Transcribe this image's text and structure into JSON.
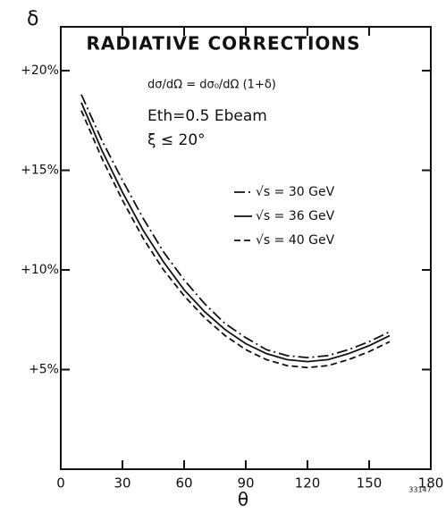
{
  "chart_data": {
    "type": "line",
    "title": "RADIATIVE CORRECTIONS",
    "y_label": "δ",
    "x_label": "θ",
    "annotations": [
      "dσ/dΩ = dσ₀/dΩ (1+δ)",
      "Eth=0.5 Ebeam",
      "ξ ≤ 20°",
      "33147"
    ],
    "x": [
      10,
      20,
      30,
      40,
      50,
      60,
      70,
      80,
      90,
      100,
      110,
      120,
      130,
      140,
      150,
      160
    ],
    "series": [
      {
        "name": "√s = 30 GeV",
        "color": "#111111",
        "style": "dashdot",
        "values": [
          18.8,
          16.5,
          14.5,
          12.6,
          10.9,
          9.5,
          8.3,
          7.3,
          6.6,
          6.0,
          5.7,
          5.6,
          5.7,
          6.0,
          6.4,
          6.9
        ]
      },
      {
        "name": "√s = 36 GeV",
        "color": "#111111",
        "style": "solid",
        "values": [
          18.4,
          16.0,
          13.9,
          12.0,
          10.4,
          9.0,
          7.9,
          7.0,
          6.3,
          5.8,
          5.5,
          5.4,
          5.5,
          5.8,
          6.2,
          6.7
        ]
      },
      {
        "name": "√s = 40 GeV",
        "color": "#111111",
        "style": "dashed",
        "values": [
          18.0,
          15.6,
          13.5,
          11.6,
          10.0,
          8.7,
          7.6,
          6.7,
          6.0,
          5.5,
          5.2,
          5.1,
          5.2,
          5.5,
          5.9,
          6.4
        ]
      }
    ],
    "xlim": [
      0,
      180
    ],
    "xticks": [
      0,
      30,
      60,
      90,
      120,
      150,
      180
    ],
    "ylim": [
      0,
      22.2
    ],
    "yticks": [
      {
        "value": 5,
        "label": "+5%"
      },
      {
        "value": 10,
        "label": "+10%"
      },
      {
        "value": 15,
        "label": "+15%"
      },
      {
        "value": 20,
        "label": "+20%"
      }
    ]
  }
}
